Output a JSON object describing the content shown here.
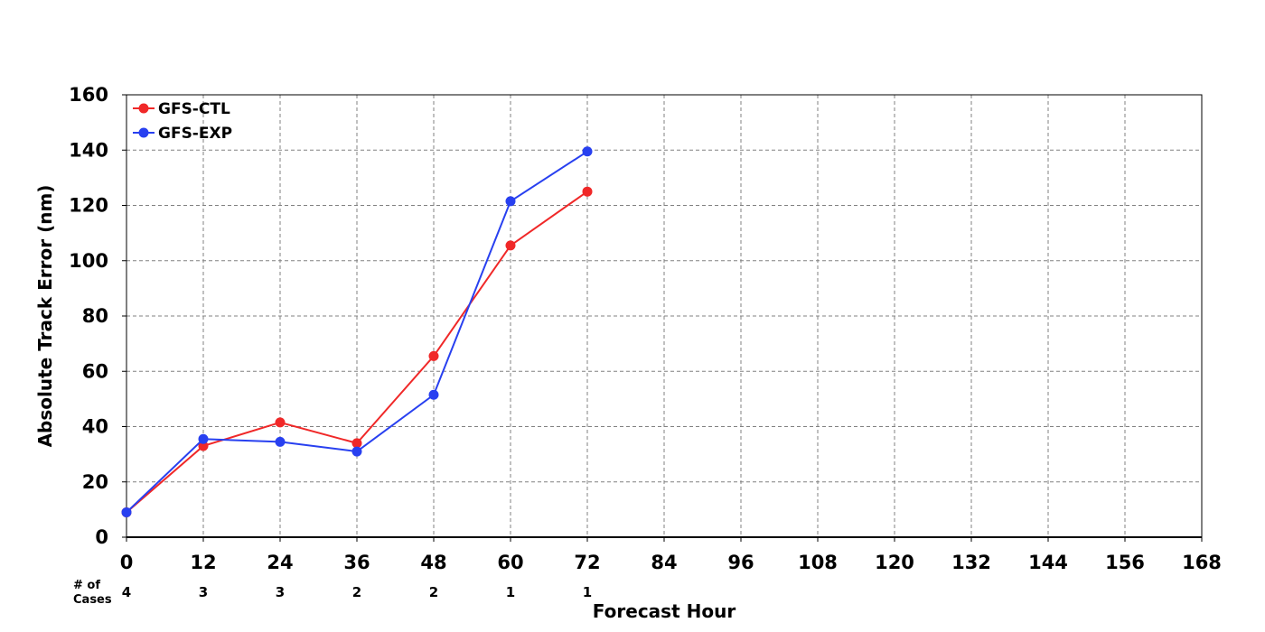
{
  "chart_data": {
    "type": "line",
    "title": "",
    "xlabel": "Forecast Hour",
    "ylabel": "Absolute Track Error (nm)",
    "xlim": [
      0,
      168
    ],
    "ylim": [
      0,
      160
    ],
    "x_ticks": [
      0,
      12,
      24,
      36,
      48,
      60,
      72,
      84,
      96,
      108,
      120,
      132,
      144,
      156,
      168
    ],
    "y_ticks": [
      0,
      20,
      40,
      60,
      80,
      100,
      120,
      140,
      160
    ],
    "grid": true,
    "legend_position": "top-left",
    "x": [
      0,
      12,
      24,
      36,
      48,
      60,
      72
    ],
    "series": [
      {
        "name": "GFS-CTL",
        "color": "#f02828",
        "values": [
          9,
          33,
          41.5,
          34,
          65.5,
          105.5,
          125
        ]
      },
      {
        "name": "GFS-EXP",
        "color": "#2840f0",
        "values": [
          9,
          35.5,
          34.5,
          31,
          51.5,
          121.5,
          139.5
        ]
      }
    ],
    "cases_label": "# of Cases",
    "cases_label_lines": [
      "# of",
      "Cases"
    ],
    "cases": [
      4,
      3,
      3,
      2,
      2,
      1,
      1
    ]
  }
}
